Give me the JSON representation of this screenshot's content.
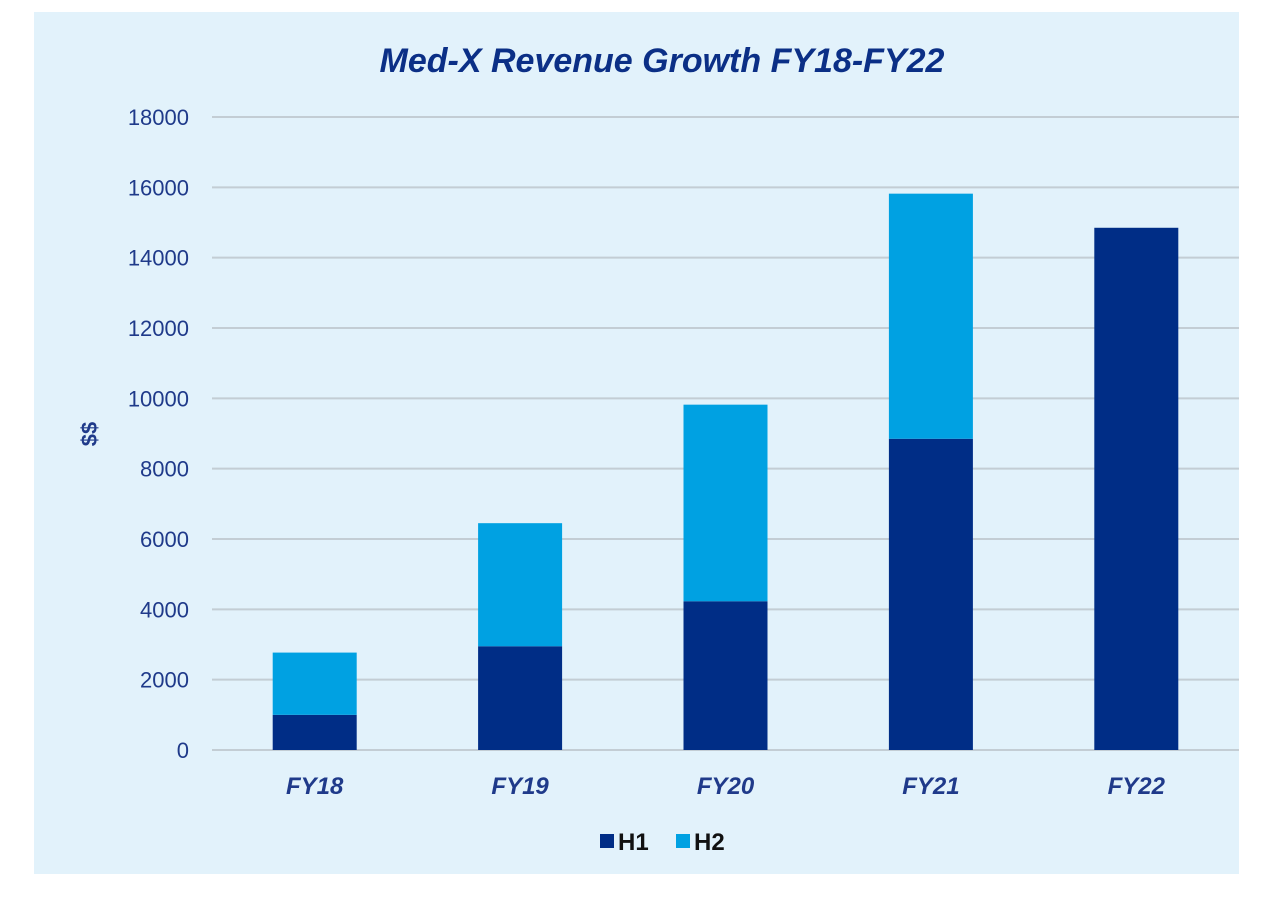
{
  "chart_data": {
    "type": "bar",
    "stacked": true,
    "title": "Med-X Revenue Growth FY18-FY22",
    "xlabel": "",
    "ylabel": "$$",
    "categories": [
      "FY18",
      "FY19",
      "FY20",
      "FY21",
      "FY22"
    ],
    "series": [
      {
        "name": "H1",
        "color": "#002d86",
        "values": [
          1000,
          2950,
          4230,
          8850,
          14850
        ]
      },
      {
        "name": "H2",
        "color": "#00a1e2",
        "values": [
          1770,
          3500,
          5590,
          6970,
          0
        ]
      }
    ],
    "ylim": [
      0,
      18000
    ],
    "yticks": [
      "0",
      "2000",
      "4000",
      "6000",
      "8000",
      "10000",
      "12000",
      "14000",
      "16000",
      "18000"
    ],
    "grid": true,
    "legend": "bottom",
    "colors": {
      "background": "#e2f2fb",
      "text": "#1f3a8a",
      "title": "#0b2f86",
      "grid": "#c3cdd4"
    }
  }
}
